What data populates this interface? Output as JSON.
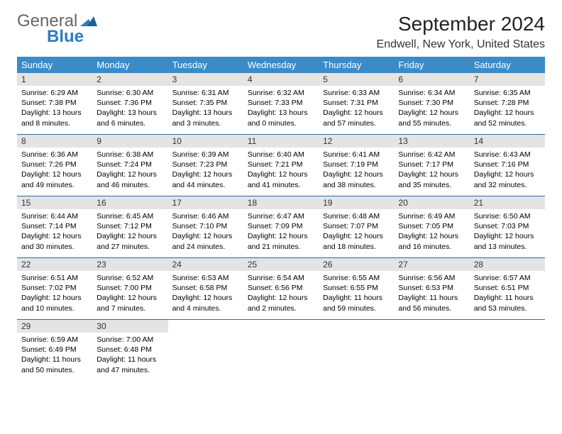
{
  "logo": {
    "general": "General",
    "blue": "Blue"
  },
  "title": "September 2024",
  "location": "Endwell, New York, United States",
  "headers": [
    "Sunday",
    "Monday",
    "Tuesday",
    "Wednesday",
    "Thursday",
    "Friday",
    "Saturday"
  ],
  "colors": {
    "header_bg": "#3b8bc7",
    "header_text": "#ffffff",
    "daynum_bg": "#e4e4e4",
    "week_border": "#2a6aa0",
    "logo_gray": "#666666",
    "logo_blue": "#2f7bbf"
  },
  "typography": {
    "title_fontsize": 28,
    "location_fontsize": 16,
    "header_fontsize": 13,
    "daynum_fontsize": 12,
    "info_fontsize": 10.5
  },
  "weeks": [
    [
      {
        "n": "1",
        "sr": "Sunrise: 6:29 AM",
        "ss": "Sunset: 7:38 PM",
        "d1": "Daylight: 13 hours",
        "d2": "and 8 minutes."
      },
      {
        "n": "2",
        "sr": "Sunrise: 6:30 AM",
        "ss": "Sunset: 7:36 PM",
        "d1": "Daylight: 13 hours",
        "d2": "and 6 minutes."
      },
      {
        "n": "3",
        "sr": "Sunrise: 6:31 AM",
        "ss": "Sunset: 7:35 PM",
        "d1": "Daylight: 13 hours",
        "d2": "and 3 minutes."
      },
      {
        "n": "4",
        "sr": "Sunrise: 6:32 AM",
        "ss": "Sunset: 7:33 PM",
        "d1": "Daylight: 13 hours",
        "d2": "and 0 minutes."
      },
      {
        "n": "5",
        "sr": "Sunrise: 6:33 AM",
        "ss": "Sunset: 7:31 PM",
        "d1": "Daylight: 12 hours",
        "d2": "and 57 minutes."
      },
      {
        "n": "6",
        "sr": "Sunrise: 6:34 AM",
        "ss": "Sunset: 7:30 PM",
        "d1": "Daylight: 12 hours",
        "d2": "and 55 minutes."
      },
      {
        "n": "7",
        "sr": "Sunrise: 6:35 AM",
        "ss": "Sunset: 7:28 PM",
        "d1": "Daylight: 12 hours",
        "d2": "and 52 minutes."
      }
    ],
    [
      {
        "n": "8",
        "sr": "Sunrise: 6:36 AM",
        "ss": "Sunset: 7:26 PM",
        "d1": "Daylight: 12 hours",
        "d2": "and 49 minutes."
      },
      {
        "n": "9",
        "sr": "Sunrise: 6:38 AM",
        "ss": "Sunset: 7:24 PM",
        "d1": "Daylight: 12 hours",
        "d2": "and 46 minutes."
      },
      {
        "n": "10",
        "sr": "Sunrise: 6:39 AM",
        "ss": "Sunset: 7:23 PM",
        "d1": "Daylight: 12 hours",
        "d2": "and 44 minutes."
      },
      {
        "n": "11",
        "sr": "Sunrise: 6:40 AM",
        "ss": "Sunset: 7:21 PM",
        "d1": "Daylight: 12 hours",
        "d2": "and 41 minutes."
      },
      {
        "n": "12",
        "sr": "Sunrise: 6:41 AM",
        "ss": "Sunset: 7:19 PM",
        "d1": "Daylight: 12 hours",
        "d2": "and 38 minutes."
      },
      {
        "n": "13",
        "sr": "Sunrise: 6:42 AM",
        "ss": "Sunset: 7:17 PM",
        "d1": "Daylight: 12 hours",
        "d2": "and 35 minutes."
      },
      {
        "n": "14",
        "sr": "Sunrise: 6:43 AM",
        "ss": "Sunset: 7:16 PM",
        "d1": "Daylight: 12 hours",
        "d2": "and 32 minutes."
      }
    ],
    [
      {
        "n": "15",
        "sr": "Sunrise: 6:44 AM",
        "ss": "Sunset: 7:14 PM",
        "d1": "Daylight: 12 hours",
        "d2": "and 30 minutes."
      },
      {
        "n": "16",
        "sr": "Sunrise: 6:45 AM",
        "ss": "Sunset: 7:12 PM",
        "d1": "Daylight: 12 hours",
        "d2": "and 27 minutes."
      },
      {
        "n": "17",
        "sr": "Sunrise: 6:46 AM",
        "ss": "Sunset: 7:10 PM",
        "d1": "Daylight: 12 hours",
        "d2": "and 24 minutes."
      },
      {
        "n": "18",
        "sr": "Sunrise: 6:47 AM",
        "ss": "Sunset: 7:09 PM",
        "d1": "Daylight: 12 hours",
        "d2": "and 21 minutes."
      },
      {
        "n": "19",
        "sr": "Sunrise: 6:48 AM",
        "ss": "Sunset: 7:07 PM",
        "d1": "Daylight: 12 hours",
        "d2": "and 18 minutes."
      },
      {
        "n": "20",
        "sr": "Sunrise: 6:49 AM",
        "ss": "Sunset: 7:05 PM",
        "d1": "Daylight: 12 hours",
        "d2": "and 16 minutes."
      },
      {
        "n": "21",
        "sr": "Sunrise: 6:50 AM",
        "ss": "Sunset: 7:03 PM",
        "d1": "Daylight: 12 hours",
        "d2": "and 13 minutes."
      }
    ],
    [
      {
        "n": "22",
        "sr": "Sunrise: 6:51 AM",
        "ss": "Sunset: 7:02 PM",
        "d1": "Daylight: 12 hours",
        "d2": "and 10 minutes."
      },
      {
        "n": "23",
        "sr": "Sunrise: 6:52 AM",
        "ss": "Sunset: 7:00 PM",
        "d1": "Daylight: 12 hours",
        "d2": "and 7 minutes."
      },
      {
        "n": "24",
        "sr": "Sunrise: 6:53 AM",
        "ss": "Sunset: 6:58 PM",
        "d1": "Daylight: 12 hours",
        "d2": "and 4 minutes."
      },
      {
        "n": "25",
        "sr": "Sunrise: 6:54 AM",
        "ss": "Sunset: 6:56 PM",
        "d1": "Daylight: 12 hours",
        "d2": "and 2 minutes."
      },
      {
        "n": "26",
        "sr": "Sunrise: 6:55 AM",
        "ss": "Sunset: 6:55 PM",
        "d1": "Daylight: 11 hours",
        "d2": "and 59 minutes."
      },
      {
        "n": "27",
        "sr": "Sunrise: 6:56 AM",
        "ss": "Sunset: 6:53 PM",
        "d1": "Daylight: 11 hours",
        "d2": "and 56 minutes."
      },
      {
        "n": "28",
        "sr": "Sunrise: 6:57 AM",
        "ss": "Sunset: 6:51 PM",
        "d1": "Daylight: 11 hours",
        "d2": "and 53 minutes."
      }
    ],
    [
      {
        "n": "29",
        "sr": "Sunrise: 6:59 AM",
        "ss": "Sunset: 6:49 PM",
        "d1": "Daylight: 11 hours",
        "d2": "and 50 minutes."
      },
      {
        "n": "30",
        "sr": "Sunrise: 7:00 AM",
        "ss": "Sunset: 6:48 PM",
        "d1": "Daylight: 11 hours",
        "d2": "and 47 minutes."
      },
      null,
      null,
      null,
      null,
      null
    ]
  ]
}
